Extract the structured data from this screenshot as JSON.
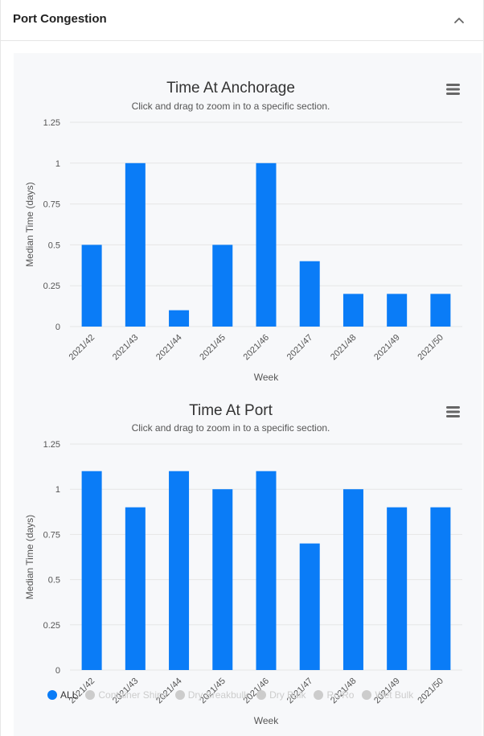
{
  "panel": {
    "title": "Port Congestion"
  },
  "colors": {
    "bar": "#0a7cf7",
    "grid": "#e6e6e6",
    "legend_active": "#0a7cf7",
    "legend_inactive": "#cccccc",
    "legend_active_text": "#333333",
    "legend_inactive_text": "#cccccc"
  },
  "chart_data": [
    {
      "type": "bar",
      "title": "Time At Anchorage",
      "subtitle": "Click and drag to zoom in to a specific section.",
      "xlabel": "Week",
      "ylabel": "Median Time (days)",
      "ylim": [
        0,
        1.25
      ],
      "yticks": [
        "0",
        "0.25",
        "0.5",
        "0.75",
        "1",
        "1.25"
      ],
      "categories": [
        "2021/42",
        "2021/43",
        "2021/44",
        "2021/45",
        "2021/46",
        "2021/47",
        "2021/48",
        "2021/49",
        "2021/50"
      ],
      "values": [
        0.5,
        1.0,
        0.1,
        0.5,
        1.0,
        0.4,
        0.2,
        0.2,
        0.2
      ],
      "grid": true
    },
    {
      "type": "bar",
      "title": "Time At Port",
      "subtitle": "Click and drag to zoom in to a specific section.",
      "xlabel": "Week",
      "ylabel": "Median Time (days)",
      "ylim": [
        0,
        1.25
      ],
      "yticks": [
        "0",
        "0.25",
        "0.5",
        "0.75",
        "1",
        "1.25"
      ],
      "categories": [
        "2021/42",
        "2021/43",
        "2021/44",
        "2021/45",
        "2021/46",
        "2021/47",
        "2021/48",
        "2021/49",
        "2021/50"
      ],
      "values": [
        1.1,
        0.9,
        1.1,
        1.0,
        1.1,
        0.7,
        1.0,
        0.9,
        0.9
      ],
      "grid": true
    }
  ],
  "legend": {
    "placement": "bottom-left",
    "items": [
      {
        "label": "ALL",
        "active": true
      },
      {
        "label": "Container Ships",
        "active": false
      },
      {
        "label": "Dry Breakbulk",
        "active": false
      },
      {
        "label": "Dry Bulk",
        "active": false
      },
      {
        "label": "Ro/Ro",
        "active": false
      },
      {
        "label": "Wet Bulk",
        "active": false
      }
    ]
  },
  "icons": {
    "collapse": "chevron-up-icon",
    "menu": "hamburger-menu-icon"
  }
}
